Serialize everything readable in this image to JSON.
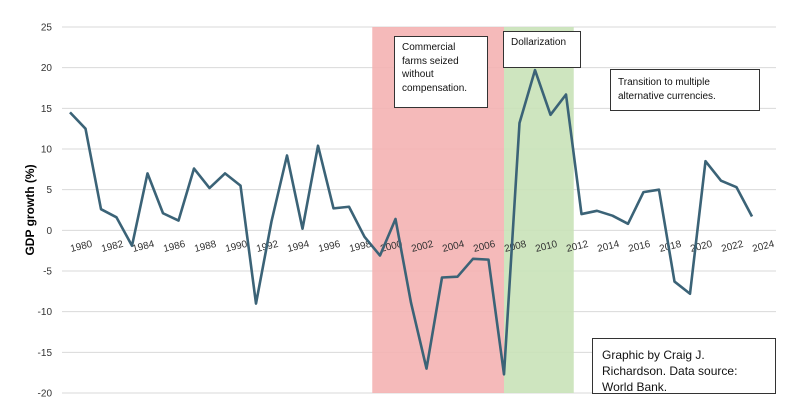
{
  "chart_data": {
    "type": "line",
    "y_label": "GDP growth (%)",
    "x": [
      1980,
      1981,
      1982,
      1983,
      1984,
      1985,
      1986,
      1987,
      1988,
      1989,
      1990,
      1991,
      1992,
      1993,
      1994,
      1995,
      1996,
      1997,
      1998,
      1999,
      2000,
      2001,
      2002,
      2003,
      2004,
      2005,
      2006,
      2007,
      2008,
      2009,
      2010,
      2011,
      2012,
      2013,
      2014,
      2015,
      2016,
      2017,
      2018,
      2019,
      2020,
      2021,
      2022,
      2023,
      2024
    ],
    "series": [
      {
        "name": "GDP growth",
        "color": "#3b6377",
        "values": [
          14.5,
          12.5,
          2.6,
          1.6,
          -1.9,
          7.0,
          2.1,
          1.2,
          7.6,
          5.2,
          7.0,
          5.5,
          -9.0,
          1.1,
          9.2,
          0.2,
          10.4,
          2.7,
          2.9,
          -0.8,
          -3.1,
          1.4,
          -8.9,
          -17.0,
          -5.8,
          -5.7,
          -3.5,
          -3.6,
          -17.7,
          13.2,
          19.7,
          14.2,
          16.7,
          2.0,
          2.4,
          1.8,
          0.8,
          4.7,
          5.0,
          -6.3,
          -7.8,
          8.5,
          6.1,
          5.3,
          1.7
        ]
      }
    ],
    "xlim": [
      1980,
      2024
    ],
    "xticks": [
      1980,
      1982,
      1984,
      1986,
      1988,
      1990,
      1992,
      1994,
      1996,
      1998,
      2000,
      2002,
      2004,
      2006,
      2008,
      2010,
      2012,
      2014,
      2016,
      2018,
      2020,
      2022,
      2024
    ],
    "ylim": [
      -20,
      25
    ],
    "yticks": [
      -20,
      -15,
      -10,
      -5,
      0,
      5,
      10,
      15,
      20,
      25
    ],
    "grid": true,
    "spans": [
      {
        "from": 1999.5,
        "to": 2008,
        "color": "#f4b3b3"
      },
      {
        "from": 2008,
        "to": 2012.5,
        "color": "#c9e2b8"
      }
    ],
    "annotations": [
      "Commercial farms seized without compensation.",
      "Dollarization",
      "Transition to multiple alternative currencies.",
      "Graphic by Craig J. Richardson. Data source: World Bank."
    ]
  }
}
